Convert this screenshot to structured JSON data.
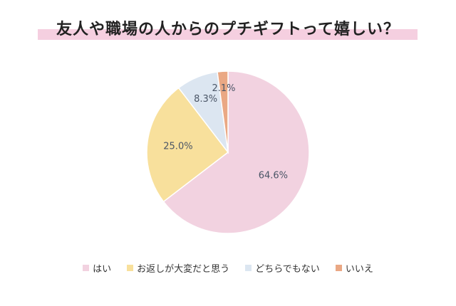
{
  "chart_data": {
    "type": "pie",
    "title": "友人や職場の人からのプチギフトって嬉しい？",
    "slices": [
      {
        "label": "はい",
        "value": 64.6,
        "display": "64.6%",
        "color": "#f2d2e0"
      },
      {
        "label": "お返しが大変だと思う",
        "value": 25.0,
        "display": "25.0%",
        "color": "#f8e09c"
      },
      {
        "label": "どちらでもない",
        "value": 8.3,
        "display": "8.3%",
        "color": "#dce6f1"
      },
      {
        "label": "いいえ",
        "value": 2.1,
        "display": "2.1%",
        "color": "#eaa884"
      }
    ],
    "legend_position": "bottom",
    "start_angle_deg": 0,
    "direction": "clockwise"
  }
}
